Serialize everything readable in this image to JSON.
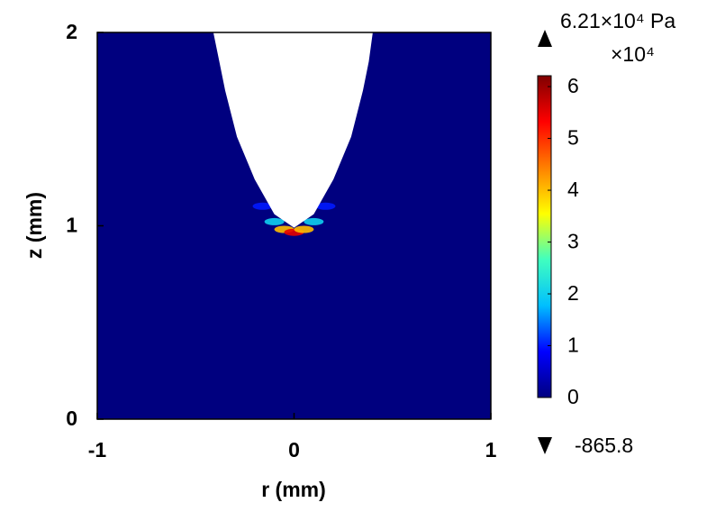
{
  "chart_data": {
    "type": "surface",
    "xlabel": "r (mm)",
    "ylabel": "z (mm)",
    "xlim": [
      -1,
      1
    ],
    "ylim": [
      0,
      2
    ],
    "xticks": [
      -1,
      0,
      1
    ],
    "yticks": [
      0,
      1,
      2
    ],
    "background_value": 0,
    "cavity": {
      "r": [
        -0.41,
        -0.38,
        -0.35,
        -0.29,
        -0.2,
        -0.1,
        0,
        0.1,
        0.2,
        0.29,
        0.35,
        0.38,
        0.4
      ],
      "z": [
        2,
        1.85,
        1.7,
        1.46,
        1.24,
        1.06,
        0.99,
        1.06,
        1.24,
        1.46,
        1.7,
        1.85,
        2
      ],
      "color": "#ffffff"
    },
    "hotspot": {
      "r": [
        -0.16,
        -0.1,
        -0.05,
        0,
        0.05,
        0.1,
        0.16
      ],
      "z": [
        1.12,
        1.04,
        1.0,
        0.985,
        1.0,
        1.04,
        1.12
      ],
      "values": [
        1,
        2,
        4,
        5.5,
        4,
        2,
        1
      ]
    },
    "colorbar": {
      "lim": [
        0,
        6.21
      ],
      "ticks": [
        0,
        1,
        2,
        3,
        4,
        5,
        6
      ],
      "multiplier": "×10⁴",
      "max_label": "6.21×10⁴ Pa",
      "min_label": "-865.8",
      "colormap": [
        "#00007f",
        "#0000ff",
        "#00bfff",
        "#40ffbf",
        "#ffff00",
        "#ff8000",
        "#ff0000",
        "#7f0000"
      ]
    }
  }
}
